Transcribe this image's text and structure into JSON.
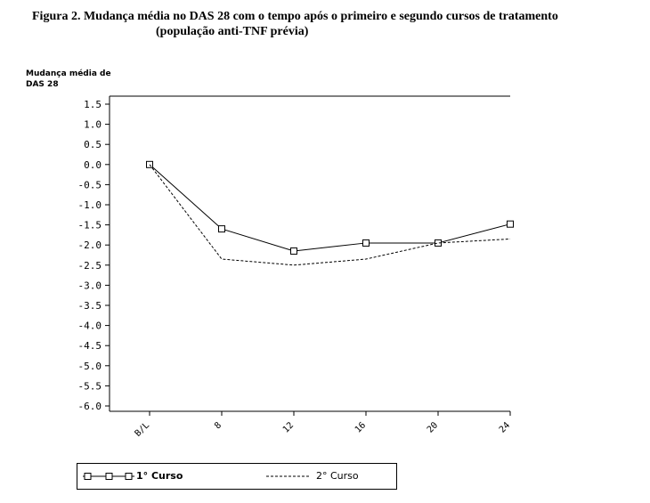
{
  "figure": {
    "title_line1": "Figura 2. Mudança média no DAS 28 com o tempo após o primeiro e segundo cursos de tratamento",
    "title_line2": "(população anti-TNF prévia)"
  },
  "chart_data": {
    "type": "line",
    "title": "Figura 2. Mudança média no DAS 28 com o tempo após o primeiro e segundo cursos de tratamento (população anti-TNF prévia)",
    "ylabel_line1": "Mudança média de",
    "ylabel_line2": "DAS 28",
    "xlabel": "",
    "categories": [
      "B/L",
      "8",
      "12",
      "16",
      "20",
      "24"
    ],
    "x_tick_labels": [
      "B/L",
      "8",
      "12",
      "16",
      "20",
      "24"
    ],
    "ylim": [
      -6.0,
      1.5
    ],
    "y_ticks": [
      1.5,
      1.0,
      0.5,
      0.0,
      -0.5,
      -1.0,
      -1.5,
      -2.0,
      -2.5,
      -3.0,
      -3.5,
      -4.0,
      -4.5,
      -5.0,
      -5.5,
      -6.0
    ],
    "y_tick_labels": [
      "1.5",
      "1.0",
      "0.5",
      "0.0",
      "-0.5",
      "-1.0",
      "-1.5",
      "-2.0",
      "-2.5",
      "-3.0",
      "-3.5",
      "-4.0",
      "-4.5",
      "-5.0",
      "-5.5",
      "-6.0"
    ],
    "grid": false,
    "legend_placement": "bottom-left",
    "series": [
      {
        "name": "1° Curso",
        "values": [
          0.0,
          -1.6,
          -2.15,
          -1.95,
          -1.95,
          -1.48
        ],
        "line_style": "solid",
        "marker": "square",
        "color": "#000000"
      },
      {
        "name": "2° Curso",
        "values": [
          0.0,
          -2.35,
          -2.5,
          -2.35,
          -1.95,
          -1.85
        ],
        "line_style": "dashed",
        "marker": "none",
        "color": "#000000"
      }
    ]
  }
}
